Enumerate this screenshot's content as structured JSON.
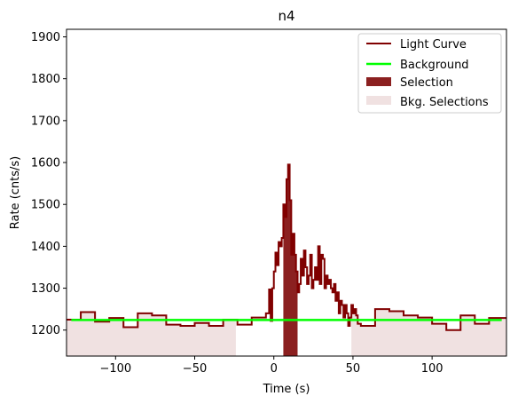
{
  "chart_data": {
    "type": "line",
    "title": "n4",
    "xlabel": "Time (s)",
    "ylabel": "Rate (cnts/s)",
    "xlim": [
      -131,
      147
    ],
    "ylim": [
      1138,
      1918
    ],
    "xticks": [
      -100,
      -50,
      0,
      50,
      100
    ],
    "yticks": [
      1200,
      1300,
      1400,
      1500,
      1600,
      1700,
      1800,
      1900
    ],
    "grid": false,
    "legend_placement": "top-right",
    "legend": [
      "Light Curve",
      "Background",
      "Selection",
      "Bkg. Selections"
    ],
    "colors": {
      "light_curve": "#800000",
      "background": "#00ff00",
      "selection": "#8b2020",
      "bkg_selection": "#f0e1e1"
    },
    "selection": [
      6,
      15
    ],
    "bkg_selections": [
      [
        -131,
        -24
      ],
      [
        49,
        147
      ]
    ],
    "background_level": 1224,
    "background_range": [
      -128,
      144
    ],
    "light_curve": {
      "x": [
        -131,
        -122,
        -113,
        -104,
        -95,
        -86,
        -77,
        -68,
        -59,
        -50,
        -41,
        -32,
        -23,
        -14,
        -5,
        -3,
        -2,
        -1,
        0,
        1,
        2,
        3,
        4,
        5,
        6,
        7,
        8,
        9,
        10,
        11,
        12,
        13,
        14,
        15,
        16,
        17,
        18,
        19,
        20,
        21,
        22,
        23,
        24,
        25,
        26,
        27,
        28,
        29,
        30,
        31,
        32,
        33,
        34,
        35,
        36,
        37,
        38,
        39,
        40,
        41,
        42,
        43,
        44,
        45,
        46,
        47,
        48,
        49,
        50,
        51,
        52,
        53,
        55,
        64,
        73,
        82,
        91,
        100,
        109,
        118,
        127,
        136,
        147
      ],
      "y": [
        1225,
        1243,
        1220,
        1229,
        1207,
        1240,
        1235,
        1213,
        1210,
        1217,
        1210,
        1225,
        1213,
        1230,
        1240,
        1297,
        1222,
        1300,
        1340,
        1385,
        1355,
        1410,
        1400,
        1420,
        1500,
        1470,
        1560,
        1595,
        1510,
        1380,
        1430,
        1380,
        1340,
        1290,
        1310,
        1370,
        1330,
        1390,
        1350,
        1310,
        1330,
        1380,
        1300,
        1320,
        1350,
        1320,
        1400,
        1310,
        1380,
        1370,
        1300,
        1330,
        1310,
        1320,
        1300,
        1290,
        1310,
        1270,
        1290,
        1240,
        1270,
        1260,
        1230,
        1260,
        1240,
        1210,
        1230,
        1260,
        1240,
        1250,
        1235,
        1215,
        1210,
        1250,
        1245,
        1235,
        1230,
        1215,
        1200,
        1235,
        1215,
        1229,
        1210
      ]
    }
  }
}
